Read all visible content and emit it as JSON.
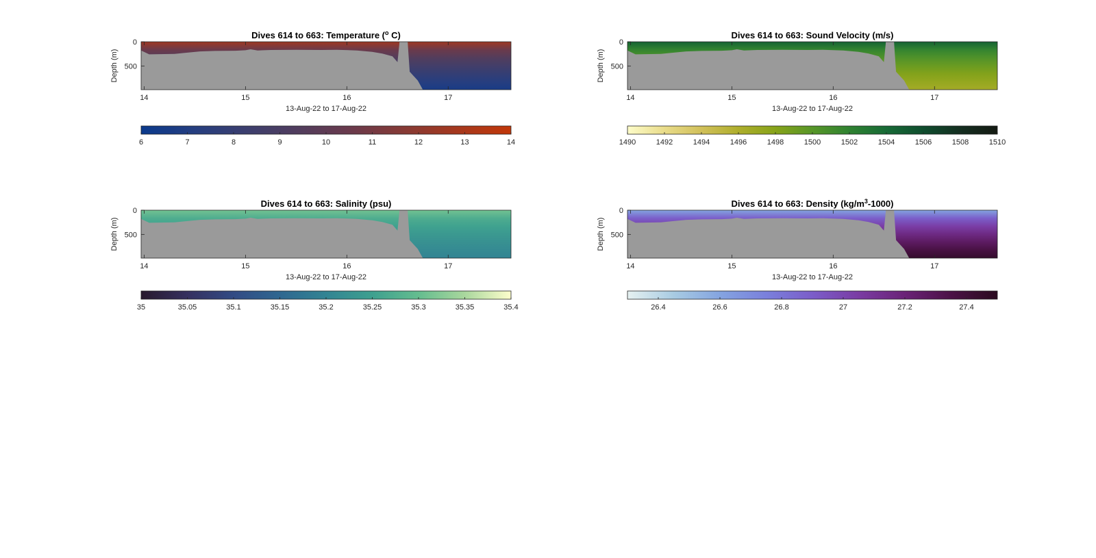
{
  "figure": {
    "background": "#ffffff"
  },
  "chart_data": [
    {
      "type": "heatmap",
      "title": "Dives 614 to 663: Temperature (°C)",
      "title_parts": [
        "Dives 614 to 663: Temperature (",
        "o",
        " C)"
      ],
      "xlabel": "13-Aug-22 to 17-Aug-22",
      "ylabel": "Depth (m)",
      "xlim": [
        13.97,
        17.62
      ],
      "x_ticks": [
        14,
        15,
        16,
        17
      ],
      "ylim": [
        0,
        990
      ],
      "y_ticks": [
        0,
        500
      ],
      "y_reversed": true,
      "colorbar": {
        "ticks": [
          "6",
          "7",
          "8",
          "9",
          "10",
          "11",
          "12",
          "13",
          "14"
        ],
        "limits": [
          6,
          14
        ],
        "colors": [
          "#0b3a8c",
          "#253e80",
          "#3c3e6e",
          "#523d5d",
          "#6b3a4b",
          "#873a35",
          "#a6381d",
          "#c13709"
        ]
      },
      "surface_value": 12.6,
      "deep_value": 6.6
    },
    {
      "type": "heatmap",
      "title": "Dives 614 to 663: Sound Velocity (m/s)",
      "title_parts": [
        "Dives 614 to 663: Sound Velocity (m/s)",
        "",
        ""
      ],
      "xlabel": "13-Aug-22 to 17-Aug-22",
      "ylabel": "Depth (m)",
      "xlim": [
        13.97,
        17.62
      ],
      "x_ticks": [
        14,
        15,
        16,
        17
      ],
      "ylim": [
        0,
        990
      ],
      "y_ticks": [
        0,
        500
      ],
      "y_reversed": true,
      "colorbar": {
        "ticks": [
          "1490",
          "1492",
          "1494",
          "1496",
          "1498",
          "1500",
          "1502",
          "1504",
          "1506",
          "1508",
          "1510"
        ],
        "limits": [
          1490,
          1510
        ],
        "colors": [
          "#fdfcc9",
          "#e9dc8a",
          "#d1c05a",
          "#aeae2c",
          "#87a319",
          "#579628",
          "#2f8231",
          "#176a36",
          "#0f4d2e",
          "#142e20",
          "#141a12"
        ]
      },
      "surface_value": 1504.5,
      "deep_value": 1496.5
    },
    {
      "type": "heatmap",
      "title": "Dives 614 to 663: Salinity (psu)",
      "title_parts": [
        "Dives 614 to 663: Salinity (psu)",
        "",
        ""
      ],
      "xlabel": "13-Aug-22 to 17-Aug-22",
      "ylabel": "Depth (m)",
      "xlim": [
        13.97,
        17.62
      ],
      "x_ticks": [
        14,
        15,
        16,
        17
      ],
      "ylim": [
        0,
        990
      ],
      "y_ticks": [
        0,
        500
      ],
      "y_reversed": true,
      "colorbar": {
        "ticks": [
          "35",
          "35.05",
          "35.1",
          "35.15",
          "35.2",
          "35.25",
          "35.3",
          "35.35",
          "35.4"
        ],
        "limits": [
          35,
          35.4
        ],
        "colors": [
          "#281a2d",
          "#35305f",
          "#324b84",
          "#2f6790",
          "#328493",
          "#3ea08f",
          "#64bd8f",
          "#a9d79d",
          "#fdfecc"
        ]
      },
      "surface_value": 35.31,
      "deep_value": 35.2
    },
    {
      "type": "heatmap",
      "title": "Dives 614 to 663: Density (kg/m³-1000)",
      "title_parts": [
        "Dives 614 to 663: Density (kg/m",
        "3",
        "-1000)"
      ],
      "xlabel": "13-Aug-22 to 17-Aug-22",
      "ylabel": "Depth (m)",
      "xlim": [
        13.97,
        17.62
      ],
      "x_ticks": [
        14,
        15,
        16,
        17
      ],
      "ylim": [
        0,
        990
      ],
      "y_ticks": [
        0,
        500
      ],
      "y_reversed": true,
      "colorbar": {
        "ticks": [
          "26.4",
          "26.6",
          "26.8",
          "27",
          "27.2",
          "27.4"
        ],
        "limits": [
          26.3,
          27.5
        ],
        "colors": [
          "#e6f1f1",
          "#a8cbe2",
          "#84a4e0",
          "#7a80dc",
          "#7b5dc9",
          "#7a3ca3",
          "#6a2377",
          "#4b1246",
          "#2a0b1f"
        ]
      },
      "surface_value": 26.6,
      "deep_value": 27.45
    }
  ]
}
